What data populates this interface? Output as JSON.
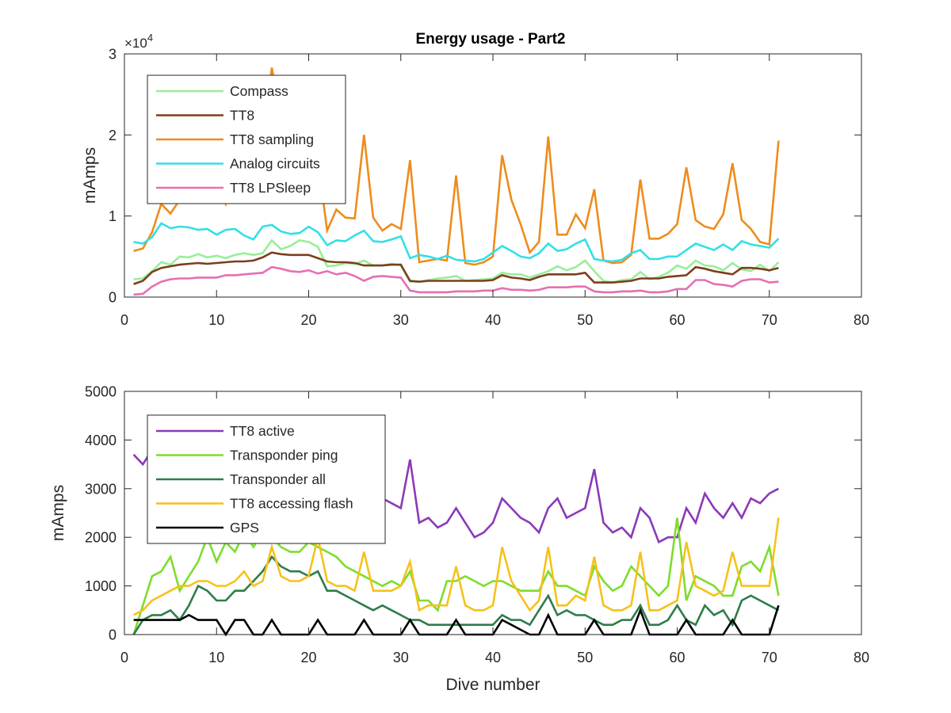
{
  "figure": {
    "title": "Energy usage - Part2"
  },
  "chart_data": [
    {
      "type": "line",
      "title": "Energy usage - Part2",
      "xlabel": "",
      "ylabel": "mAmps",
      "y_exponent_label": "×10",
      "y_exponent_power": "4",
      "xlim": [
        0,
        80
      ],
      "ylim": [
        0,
        30000
      ],
      "xticks": [
        0,
        10,
        20,
        30,
        40,
        50,
        60,
        70,
        80
      ],
      "yticks": [
        0,
        10000,
        20000,
        30000
      ],
      "ytick_labels": [
        "0",
        "1",
        "2",
        "3"
      ],
      "grid": false,
      "legend_position": "top-left",
      "x": [
        1,
        2,
        3,
        4,
        5,
        6,
        7,
        8,
        9,
        10,
        11,
        12,
        13,
        14,
        15,
        16,
        17,
        18,
        19,
        20,
        21,
        22,
        23,
        24,
        25,
        26,
        27,
        28,
        29,
        30,
        31,
        32,
        33,
        34,
        35,
        36,
        37,
        38,
        39,
        40,
        41,
        42,
        43,
        44,
        45,
        46,
        47,
        48,
        49,
        50,
        51,
        52,
        53,
        54,
        55,
        56,
        57,
        58,
        59,
        60,
        61,
        62,
        63,
        64,
        65,
        66,
        67,
        68,
        69,
        70,
        71
      ],
      "series": [
        {
          "name": "Compass",
          "color": "#99ee99",
          "values": [
            2200,
            2300,
            3200,
            4300,
            4000,
            5000,
            4900,
            5300,
            4900,
            5100,
            4800,
            5200,
            5400,
            5200,
            5400,
            7000,
            5900,
            6300,
            7000,
            6800,
            6200,
            3800,
            3900,
            4200,
            4100,
            4500,
            3900,
            3900,
            4100,
            3900,
            1900,
            1900,
            2100,
            2300,
            2400,
            2600,
            2000,
            2100,
            2200,
            2300,
            3000,
            2800,
            2800,
            2400,
            2800,
            3200,
            3800,
            3300,
            3700,
            4500,
            3200,
            2000,
            1800,
            2100,
            2200,
            3100,
            2200,
            2500,
            3000,
            3900,
            3500,
            4500,
            3900,
            3800,
            3300,
            4200,
            3400,
            3200,
            4000,
            3200,
            4300
          ]
        },
        {
          "name": "TT8",
          "color": "#7b3f1c",
          "values": [
            1600,
            2000,
            3100,
            3600,
            3800,
            4000,
            4100,
            4200,
            4100,
            4200,
            4300,
            4400,
            4400,
            4500,
            4900,
            5500,
            5300,
            5200,
            5200,
            5200,
            4800,
            4400,
            4300,
            4300,
            4200,
            3900,
            3900,
            3900,
            4000,
            4000,
            2000,
            1900,
            2000,
            2000,
            2000,
            2000,
            2000,
            2000,
            2000,
            2100,
            2700,
            2400,
            2300,
            2100,
            2500,
            2800,
            2800,
            2800,
            2800,
            3000,
            1800,
            1800,
            1800,
            1900,
            2000,
            2300,
            2300,
            2300,
            2500,
            2600,
            2700,
            3700,
            3500,
            3200,
            3000,
            2800,
            3600,
            3600,
            3500,
            3300,
            3600
          ]
        },
        {
          "name": "TT8 sampling",
          "color": "#ee8c1d",
          "values": [
            5700,
            6000,
            8000,
            11500,
            10300,
            12000,
            13000,
            14000,
            13500,
            14500,
            11500,
            15000,
            16000,
            17000,
            19000,
            28300,
            22000,
            20500,
            21000,
            20000,
            17000,
            8200,
            10800,
            9800,
            9700,
            20000,
            9800,
            8200,
            9000,
            8400,
            16900,
            4300,
            4500,
            4700,
            4500,
            15000,
            4200,
            4000,
            4300,
            5000,
            17500,
            12000,
            9000,
            5500,
            6800,
            19800,
            7700,
            7700,
            10200,
            8500,
            13300,
            4500,
            4200,
            4300,
            5200,
            14500,
            7200,
            7200,
            7800,
            9000,
            16000,
            9500,
            8700,
            8400,
            10200,
            16500,
            9500,
            8400,
            6800,
            6500,
            19300
          ]
        },
        {
          "name": "Analog circuits",
          "color": "#33dfe6",
          "values": [
            6800,
            6600,
            7400,
            9100,
            8500,
            8700,
            8600,
            8300,
            8400,
            7700,
            8300,
            8400,
            7600,
            7100,
            8700,
            8900,
            8100,
            7800,
            7900,
            8700,
            8000,
            6400,
            7000,
            6900,
            7600,
            8200,
            6900,
            6800,
            7100,
            7500,
            4800,
            5200,
            5000,
            4700,
            5100,
            4600,
            4500,
            4400,
            4700,
            5500,
            6300,
            5700,
            5000,
            4800,
            5400,
            6600,
            5700,
            5900,
            6600,
            7100,
            4700,
            4500,
            4400,
            4600,
            5400,
            5800,
            4700,
            4700,
            5000,
            5000,
            5800,
            6600,
            6200,
            5800,
            6500,
            5800,
            6900,
            6500,
            6300,
            6100,
            7200
          ]
        },
        {
          "name": "TT8 LPSleep",
          "color": "#e66fb2",
          "values": [
            300,
            400,
            1300,
            1900,
            2200,
            2300,
            2300,
            2400,
            2400,
            2400,
            2700,
            2700,
            2800,
            2900,
            3000,
            3700,
            3500,
            3200,
            3100,
            3300,
            2900,
            3200,
            2800,
            3000,
            2600,
            2000,
            2500,
            2600,
            2500,
            2400,
            800,
            600,
            600,
            600,
            600,
            700,
            700,
            700,
            800,
            800,
            1100,
            900,
            900,
            800,
            900,
            1200,
            1200,
            1200,
            1300,
            1300,
            700,
            600,
            600,
            700,
            700,
            800,
            600,
            600,
            700,
            1000,
            1000,
            2100,
            2100,
            1600,
            1500,
            1300,
            2000,
            2200,
            2200,
            1800,
            1900
          ]
        }
      ]
    },
    {
      "type": "line",
      "title": "",
      "xlabel": "Dive number",
      "ylabel": "mAmps",
      "xlim": [
        0,
        80
      ],
      "ylim": [
        0,
        5000
      ],
      "xticks": [
        0,
        10,
        20,
        30,
        40,
        50,
        60,
        70,
        80
      ],
      "yticks": [
        0,
        1000,
        2000,
        3000,
        4000,
        5000
      ],
      "ytick_labels": [
        "0",
        "1000",
        "2000",
        "3000",
        "4000",
        "5000"
      ],
      "grid": false,
      "legend_position": "top-left",
      "x": [
        1,
        2,
        3,
        4,
        5,
        6,
        7,
        8,
        9,
        10,
        11,
        12,
        13,
        14,
        15,
        16,
        17,
        18,
        19,
        20,
        21,
        22,
        23,
        24,
        25,
        26,
        27,
        28,
        29,
        30,
        31,
        32,
        33,
        34,
        35,
        36,
        37,
        38,
        39,
        40,
        41,
        42,
        43,
        44,
        45,
        46,
        47,
        48,
        49,
        50,
        51,
        52,
        53,
        54,
        55,
        56,
        57,
        58,
        59,
        60,
        61,
        62,
        63,
        64,
        65,
        66,
        67,
        68,
        69,
        70,
        71
      ],
      "series": [
        {
          "name": "TT8 active",
          "color": "#8b39b9",
          "values": [
            3700,
            3500,
            3800,
            3600,
            3500,
            3400,
            3500,
            3400,
            3300,
            3300,
            3300,
            3300,
            3200,
            3200,
            3200,
            3300,
            3200,
            3100,
            3100,
            3100,
            3100,
            3000,
            3000,
            2900,
            2800,
            2800,
            2700,
            2800,
            2700,
            2600,
            3600,
            2300,
            2400,
            2200,
            2300,
            2600,
            2300,
            2000,
            2100,
            2300,
            2800,
            2600,
            2400,
            2300,
            2100,
            2600,
            2800,
            2400,
            2500,
            2600,
            3400,
            2300,
            2100,
            2200,
            2000,
            2600,
            2400,
            1900,
            2000,
            2000,
            2600,
            2300,
            2900,
            2600,
            2400,
            2700,
            2400,
            2800,
            2700,
            2900,
            3000
          ]
        },
        {
          "name": "Transponder ping",
          "color": "#7ddd2c",
          "values": [
            0,
            600,
            1200,
            1300,
            1600,
            900,
            1200,
            1500,
            2000,
            1500,
            1900,
            1700,
            2100,
            1800,
            2100,
            2000,
            1800,
            1700,
            1700,
            1900,
            1800,
            1700,
            1600,
            1400,
            1300,
            1200,
            1100,
            1000,
            1100,
            1000,
            1300,
            700,
            700,
            500,
            1100,
            1100,
            1200,
            1100,
            1000,
            1100,
            1100,
            1000,
            900,
            900,
            900,
            1300,
            1000,
            1000,
            900,
            800,
            1400,
            1100,
            900,
            1000,
            1400,
            1200,
            1000,
            800,
            1000,
            2400,
            700,
            1200,
            1100,
            1000,
            800,
            800,
            1400,
            1500,
            1300,
            1800,
            800
          ]
        },
        {
          "name": "Transponder all",
          "color": "#2f7c4b",
          "values": [
            0,
            300,
            400,
            400,
            500,
            300,
            600,
            1000,
            900,
            700,
            700,
            900,
            900,
            1100,
            1300,
            1600,
            1400,
            1300,
            1300,
            1200,
            1300,
            900,
            900,
            800,
            700,
            600,
            500,
            600,
            500,
            400,
            300,
            300,
            200,
            200,
            200,
            200,
            200,
            200,
            200,
            200,
            400,
            300,
            300,
            200,
            500,
            800,
            400,
            500,
            400,
            400,
            300,
            200,
            200,
            300,
            300,
            600,
            200,
            200,
            300,
            600,
            300,
            200,
            600,
            400,
            500,
            200,
            700,
            800,
            700,
            600,
            500
          ]
        },
        {
          "name": "TT8 accessing flash",
          "color": "#f5c21b",
          "values": [
            400,
            500,
            700,
            800,
            900,
            1000,
            1000,
            1100,
            1100,
            1000,
            1000,
            1100,
            1300,
            1000,
            1100,
            1800,
            1200,
            1100,
            1100,
            1200,
            2000,
            1100,
            1000,
            1000,
            900,
            1700,
            900,
            900,
            900,
            1000,
            1500,
            500,
            600,
            600,
            600,
            1400,
            600,
            500,
            500,
            600,
            1800,
            1100,
            800,
            500,
            700,
            1800,
            600,
            600,
            800,
            700,
            1600,
            600,
            500,
            500,
            600,
            1700,
            500,
            500,
            600,
            700,
            1900,
            1000,
            900,
            800,
            900,
            1700,
            1000,
            1000,
            1000,
            1000,
            2400
          ]
        },
        {
          "name": "GPS",
          "color": "#000000",
          "values": [
            300,
            300,
            300,
            300,
            300,
            300,
            400,
            300,
            300,
            300,
            0,
            300,
            300,
            0,
            0,
            300,
            0,
            0,
            0,
            0,
            300,
            0,
            0,
            0,
            0,
            300,
            0,
            0,
            0,
            0,
            300,
            0,
            0,
            0,
            0,
            300,
            0,
            0,
            0,
            0,
            300,
            200,
            100,
            0,
            0,
            400,
            0,
            0,
            0,
            0,
            300,
            0,
            0,
            0,
            0,
            500,
            0,
            0,
            0,
            0,
            300,
            0,
            0,
            0,
            0,
            300,
            0,
            0,
            0,
            0,
            600
          ]
        }
      ]
    }
  ]
}
